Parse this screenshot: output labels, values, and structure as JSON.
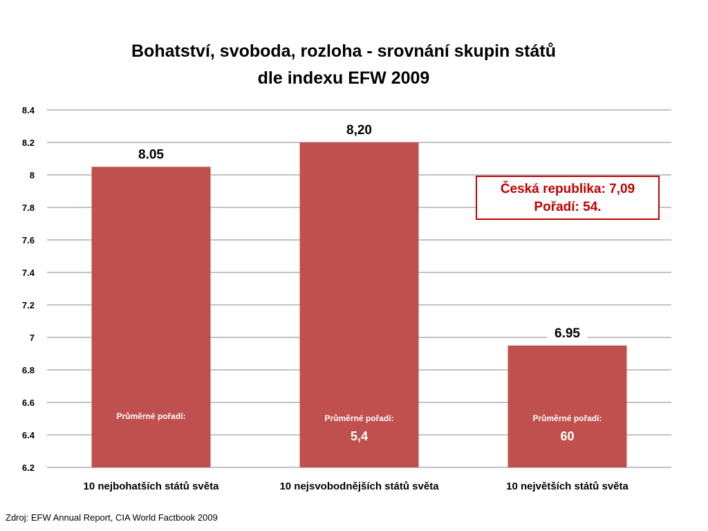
{
  "title_line1": "Bohatství, svoboda, rozloha - srovnání skupin států",
  "title_line2": "dle indexu EFW 2009",
  "callout": {
    "line1": "Česká republika: 7,09",
    "line2": "Pořadí: 54."
  },
  "source": "Zdroj: EFW Annual Report, CIA World Factbook 2009",
  "colors": {
    "bar": "#c0504d",
    "grid": "#868686",
    "callout": "#c00000"
  },
  "chart_data": {
    "type": "bar",
    "categories": [
      "10 nejbohatších států světa",
      "10 nejsvobodnějších států světa",
      "10 největších států světa"
    ],
    "values": [
      8.05,
      8.2,
      6.95
    ],
    "data_labels": [
      "8.05",
      "8,20",
      "6.95"
    ],
    "inner_label": "Průměrné pořadí:",
    "inner_values": [
      "",
      "5,4",
      "60"
    ],
    "ylim": [
      6.2,
      8.4
    ],
    "yticks": [
      "6.2",
      "6.4",
      "6.6",
      "6.8",
      "7",
      "7.2",
      "7.4",
      "7.6",
      "7.8",
      "8",
      "8.2",
      "8.4"
    ],
    "grid": true,
    "legend": "none"
  }
}
